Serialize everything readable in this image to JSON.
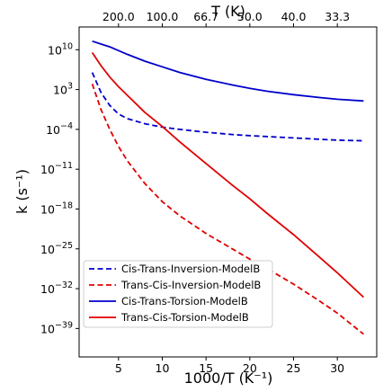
{
  "chart_data": {
    "type": "line",
    "xlabel": "1000/T (K⁻¹)",
    "ylabel": "k (s⁻¹)",
    "top_xlabel": "T (K)",
    "xlim": [
      0.5,
      34.5
    ],
    "ylim_log10": [
      -44,
      14
    ],
    "x_ticks": [
      5,
      10,
      15,
      20,
      25,
      30
    ],
    "y_ticks_log10": [
      10,
      3,
      -4,
      -11,
      -18,
      -25,
      -32,
      -39
    ],
    "y_tick_labels": [
      {
        "base": "10",
        "exp": "10"
      },
      {
        "base": "10",
        "exp": "3"
      },
      {
        "base": "10",
        "exp": "−4"
      },
      {
        "base": "10",
        "exp": "−11"
      },
      {
        "base": "10",
        "exp": "−18"
      },
      {
        "base": "10",
        "exp": "−25"
      },
      {
        "base": "10",
        "exp": "−32"
      },
      {
        "base": "10",
        "exp": "−39"
      }
    ],
    "top_ticks": [
      {
        "x": 5,
        "label": "200.0"
      },
      {
        "x": 10,
        "label": "100.0"
      },
      {
        "x": 15,
        "label": "66.7"
      },
      {
        "x": 20,
        "label": "50.0"
      },
      {
        "x": 25,
        "label": "40.0"
      },
      {
        "x": 30,
        "label": "33.3"
      }
    ],
    "legend_position": "lower-left",
    "series": [
      {
        "name": "Cis-Trans-Inversion-ModelB",
        "color": "#0000cc",
        "dash": true,
        "x": [
          2,
          3,
          4,
          5,
          6,
          8,
          10,
          12,
          15,
          18,
          20,
          25,
          30,
          33
        ],
        "log10_y": [
          6.0,
          2.5,
          0.2,
          -1.3,
          -2.1,
          -3.0,
          -3.6,
          -4.0,
          -4.5,
          -4.9,
          -5.1,
          -5.5,
          -5.9,
          -6.0
        ]
      },
      {
        "name": "Trans-Cis-Inversion-ModelB",
        "color": "#e00000",
        "dash": true,
        "x": [
          2,
          3,
          4,
          5,
          6,
          8,
          10,
          12,
          15,
          18,
          20,
          22,
          25,
          28,
          30,
          33
        ],
        "log10_y": [
          4.0,
          -0.5,
          -4.0,
          -7.0,
          -9.5,
          -13.5,
          -16.7,
          -19.2,
          -22.3,
          -25.0,
          -26.8,
          -28.5,
          -31.2,
          -34.2,
          -36.3,
          -40.0
        ]
      },
      {
        "name": "Cis-Trans-Torsion-ModelB",
        "color": "#0000cc",
        "dash": false,
        "x": [
          2,
          4,
          6,
          8,
          10,
          12,
          15,
          18,
          20,
          22,
          25,
          28,
          30,
          33
        ],
        "log10_y": [
          11.5,
          10.5,
          9.2,
          8.0,
          7.0,
          6.0,
          4.8,
          3.8,
          3.2,
          2.7,
          2.1,
          1.6,
          1.3,
          1.0
        ]
      },
      {
        "name": "Trans-Cis-Torsion-ModelB",
        "color": "#e00000",
        "dash": false,
        "x": [
          2,
          3,
          4,
          5,
          6,
          8,
          10,
          12,
          15,
          18,
          20,
          22,
          25,
          28,
          30,
          33
        ],
        "log10_y": [
          9.5,
          7.2,
          5.2,
          3.5,
          2.0,
          -1.0,
          -3.5,
          -6.2,
          -10.0,
          -13.8,
          -16.2,
          -18.8,
          -22.5,
          -26.5,
          -29.2,
          -33.5
        ]
      }
    ]
  }
}
